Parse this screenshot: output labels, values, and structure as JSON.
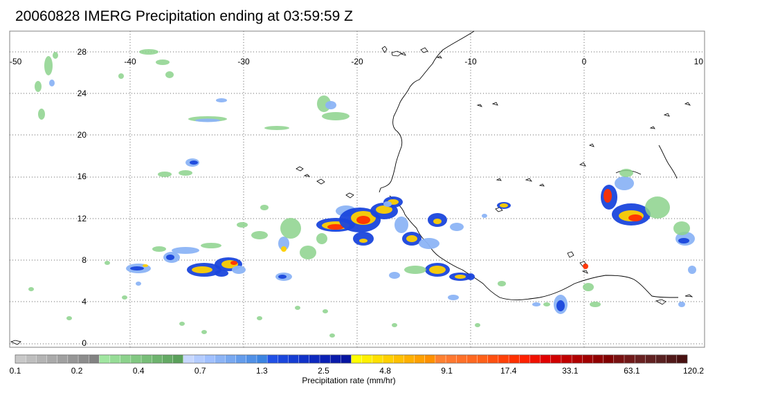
{
  "title": "20060828 IMERG Precipitation ending at 03:59:59 Z",
  "map": {
    "lon_labels": [
      "-50",
      "-40",
      "-30",
      "-20",
      "-10",
      "0",
      "10"
    ],
    "lat_labels": [
      "28",
      "24",
      "20",
      "16",
      "12",
      "8",
      "4",
      "0"
    ]
  },
  "colorbar": {
    "label": "Precipitation rate (mm/hr)",
    "tick_labels": [
      "0.1",
      "0.2",
      "0.4",
      "0.7",
      "1.3",
      "2.5",
      "4.8",
      "9.1",
      "17.4",
      "33.1",
      "63.1",
      "120.2"
    ],
    "colors": [
      "#c8c8c8",
      "#bebebe",
      "#b4b4b4",
      "#aaaaaa",
      "#a0a0a0",
      "#969696",
      "#8c8c8c",
      "#828282",
      "#a0e6a0",
      "#96dc96",
      "#8cd28c",
      "#82c882",
      "#78be78",
      "#6eb46e",
      "#64aa64",
      "#5aa05a",
      "#c8d8ff",
      "#b4ccff",
      "#a0c0ff",
      "#8cb4f5",
      "#78a8f0",
      "#649ceb",
      "#5090e6",
      "#3c84e1",
      "#2050e6",
      "#1a46dc",
      "#143cd2",
      "#1032c8",
      "#0c28be",
      "#0a20b4",
      "#081aaa",
      "#0614a0",
      "#ffff00",
      "#fff000",
      "#ffe000",
      "#ffd000",
      "#ffc000",
      "#ffb000",
      "#ffa000",
      "#ff9000",
      "#ff8030",
      "#ff7830",
      "#ff7028",
      "#ff6820",
      "#ff6018",
      "#ff5010",
      "#ff4008",
      "#ff3000",
      "#ff2000",
      "#f01000",
      "#e00000",
      "#d00000",
      "#c00000",
      "#b00000",
      "#a00000",
      "#900000",
      "#800000",
      "#781010",
      "#701818",
      "#682020",
      "#602020",
      "#582020",
      "#501818",
      "#481010"
    ]
  }
}
